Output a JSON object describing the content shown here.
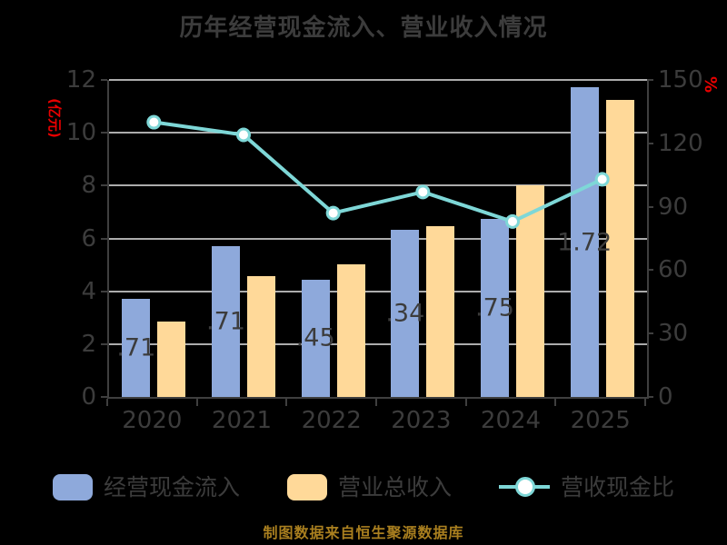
{
  "title": "历年经营现金流入、营业收入情况",
  "footer": "制图数据来自恒生聚源数据库",
  "colors": {
    "background": "#000000",
    "text": "#3C3C3C",
    "gridline": "#ACACAC",
    "axis_line": "#3F3F3F",
    "cash_bar": "#8EA9DB",
    "revenue_bar": "#FFD999",
    "ratio_line": "#7ED7D7",
    "axis_unit_red": "#E80000",
    "footer_gold": "#A97F1F"
  },
  "chart_data": {
    "type": "bar",
    "subtype": "grouped bars with overlay line (dual axis)",
    "title": "历年经营现金流入、营业收入情况",
    "categories": [
      "2020",
      "2021",
      "2022",
      "2023",
      "2024",
      "2025"
    ],
    "series": [
      {
        "name": "经营现金流入",
        "type": "bar",
        "axis": "left",
        "color": "#8EA9DB",
        "values": [
          3.71,
          5.71,
          4.45,
          6.34,
          6.75,
          11.72
        ],
        "value_labels_visible": [
          ".71",
          ".71",
          ".45",
          ".34",
          ".75",
          "1.72"
        ]
      },
      {
        "name": "营业总收入",
        "type": "bar",
        "axis": "left",
        "color": "#FFD999",
        "values": [
          2.84,
          4.59,
          5.02,
          6.45,
          8.02,
          11.24
        ]
      },
      {
        "name": "营收现金比",
        "type": "line",
        "axis": "right",
        "color": "#7ED7D7",
        "marker": "circle-white-fill",
        "values": [
          130,
          124,
          87,
          97,
          83,
          103
        ]
      }
    ],
    "left_axis": {
      "label": "(亿元)",
      "min": 0,
      "max": 12,
      "ticks": [
        0,
        2,
        4,
        6,
        8,
        10,
        12
      ]
    },
    "right_axis": {
      "label": "%",
      "min": 0,
      "max": 150,
      "ticks": [
        0,
        30,
        60,
        90,
        120,
        150
      ]
    },
    "grid": true,
    "legend_position": "bottom"
  }
}
